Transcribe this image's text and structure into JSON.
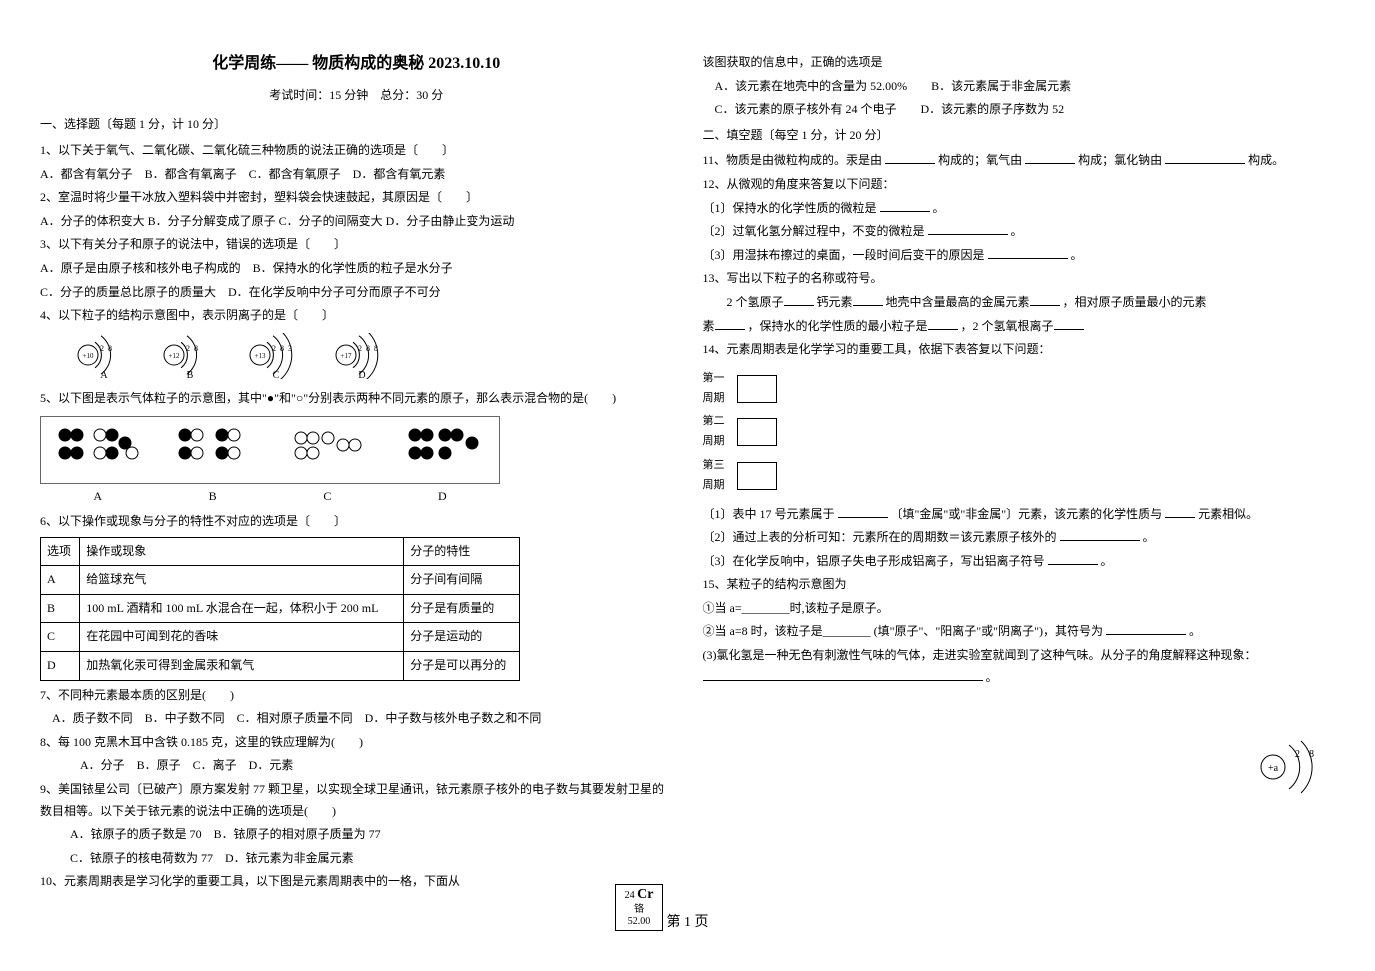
{
  "title": "化学周练—— 物质构成的奥秘 2023.10.10",
  "exam_info": "考试时间：15 分钟　总分：30 分",
  "section1_head": "一、选择题〔每题 1 分，计 10 分〕",
  "q1": "1、以下关于氧气、二氧化碳、二氧化硫三种物质的说法正确的选项是〔　　〕",
  "q1_opts": "A．都含有氧分子　B．都含有氧离子　C．都含有氧原子　D．都含有氧元素",
  "q2": "2、室温时将少量干冰放入塑料袋中并密封，塑料袋会快速鼓起，其原因是〔　　〕",
  "q2_opts": "A．分子的体积变大  B．分子分解变成了原子  C．分子的间隔变大  D．分子由静止变为运动",
  "q3": "3、以下有关分子和原子的说法中，错误的选项是〔　　〕",
  "q3a": "A．原子是由原子核和核外电子构成的　B．保持水的化学性质的粒子是水分子",
  "q3b": "C．分子的质量总比原子的质量大　D．在化学反响中分子可分而原子不可分",
  "q4": "4、以下粒子的结构示意图中，表示阴离子的是〔　　〕",
  "q5": "5、以下图是表示气体粒子的示意图，其中\"●\"和\"○\"分别表示两种不同元素的原子，那么表示混合物的是(　　)",
  "q6": "6、以下操作或现象与分子的特性不对应的选项是〔　　〕",
  "table6": {
    "cols": [
      "选项",
      "操作或现象",
      "分子的特性"
    ],
    "rows": [
      [
        "A",
        "给篮球充气",
        "分子间有间隔"
      ],
      [
        "B",
        "100 mL 酒精和 100 mL 水混合在一起，体积小于 200 mL",
        "分子是有质量的"
      ],
      [
        "C",
        "在花园中可闻到花的香味",
        "分子是运动的"
      ],
      [
        "D",
        "加热氧化汞可得到金属汞和氧气",
        "分子是可以再分的"
      ]
    ]
  },
  "q7": "7、不同种元素最本质的区别是(　　)",
  "q7_opts": "A．质子数不同　B．中子数不同　C．相对原子质量不同　D．中子数与核外电子数之和不同",
  "q8": "8、每 100 克黑木耳中含铁 0.185 克，这里的铁应理解为(　　)",
  "q8_opts": "A．分子　B．原子　C．离子　D．元素",
  "q9": "9、美国铱星公司〔已破产〕原方案发射 77 颗卫星，以实现全球卫星通讯，铱元素原子核外的电子数与其要发射卫星的数目相等。以下关于铱元素的说法中正确的选项是(　　)",
  "q9a": "A．铱原子的质子数是 70　B．铱原子的相对原子质量为 77",
  "q9b": "C．铱原子的核电荷数为 77　D．铱元素为非金属元素",
  "q10_head": "10、元素周期表是学习化学的重要工具，以下图是元素周期表中的一格，下面从",
  "element_card": {
    "num": "24",
    "sym": "Cr",
    "name": "铬",
    "mass": "52.00"
  },
  "q10_tail": "该图获取的信息中，正确的选项是",
  "q10a": "A．该元素在地壳中的含量为 52.00%　　B．该元素属于非金属元素",
  "q10b": "C．该元素的原子核外有 24 个电子　　D．该元素的原子序数为 52",
  "section2_head": "二、填空题〔每空 1 分，计 20 分〕",
  "q11_a": "11、物质是由微粒构成的。汞是由",
  "q11_b": "构成的；氧气由",
  "q11_c": "构成；氯化钠由",
  "q11_d": "构成。",
  "q12": "12、从微观的角度来答复以下问题：",
  "q12_1a": "〔1〕保持水的化学性质的微粒是",
  "q12_2a": "〔2〕过氧化氢分解过程中，不变的微粒是",
  "q12_3a": "〔3〕用湿抹布擦过的桌面，一段时间后变干的原因是",
  "q13": "13、写出以下粒子的名称或符号。",
  "q13_a": "　　2 个氢原子",
  "q13_b": "钙元素",
  "q13_c": "地壳中含量最高的金属元素",
  "q13_d": "，相对原子质量最小的元素",
  "q13_e": "，保持水的化学性质的最小粒子是",
  "q13_f": "，2 个氢氧根离子",
  "q14": "14、元素周期表是化学学习的重要工具，依据下表答复以下问题：",
  "periods": [
    "第一周期",
    "第二周期",
    "第三周期"
  ],
  "q14_1a": "〔1〕表中 17 号元素属于",
  "q14_1b": "〔填\"金属\"或\"非金属\"〕元素，该元素的化学性质与",
  "q14_1c": "元素相似。",
  "q14_2a": "〔2〕通过上表的分析可知：元素所在的周期数＝该元素原子核外的",
  "q14_3a": "〔3〕在化学反响中，铝原子失电子形成铝离子，写出铝离子符号",
  "q15": "15、某粒子的结构示意图为",
  "q15_1": "①当 a=________时,该粒子是原子。",
  "q15_2a": "②当 a=8 时，该粒子是________ (填\"原子\"、\"阳离子\"或\"阴离子\")，其符号为",
  "q15_3a": "(3)氯化氢是一种无色有刺激性气味的气体，走进实验室就闻到了这种气味。从分子的角度解释这种现象：",
  "atom_diagram": {
    "nucleus": "+a",
    "shell1": "2",
    "shell2": "8"
  },
  "page_num": "第 1 页",
  "period_dot": "。",
  "struct_opts": [
    "A",
    "B",
    "C",
    "D"
  ],
  "struct_cfg": {
    "A": {
      "n": "+10",
      "s": [
        2,
        8
      ]
    },
    "B": {
      "n": "+12",
      "s": [
        2,
        8
      ]
    },
    "C": {
      "n": "+13",
      "s": [
        2,
        8,
        3
      ]
    },
    "D": {
      "n": "+17",
      "s": [
        2,
        8,
        8
      ]
    }
  },
  "particle_labels": [
    "A",
    "B",
    "C",
    "D"
  ]
}
